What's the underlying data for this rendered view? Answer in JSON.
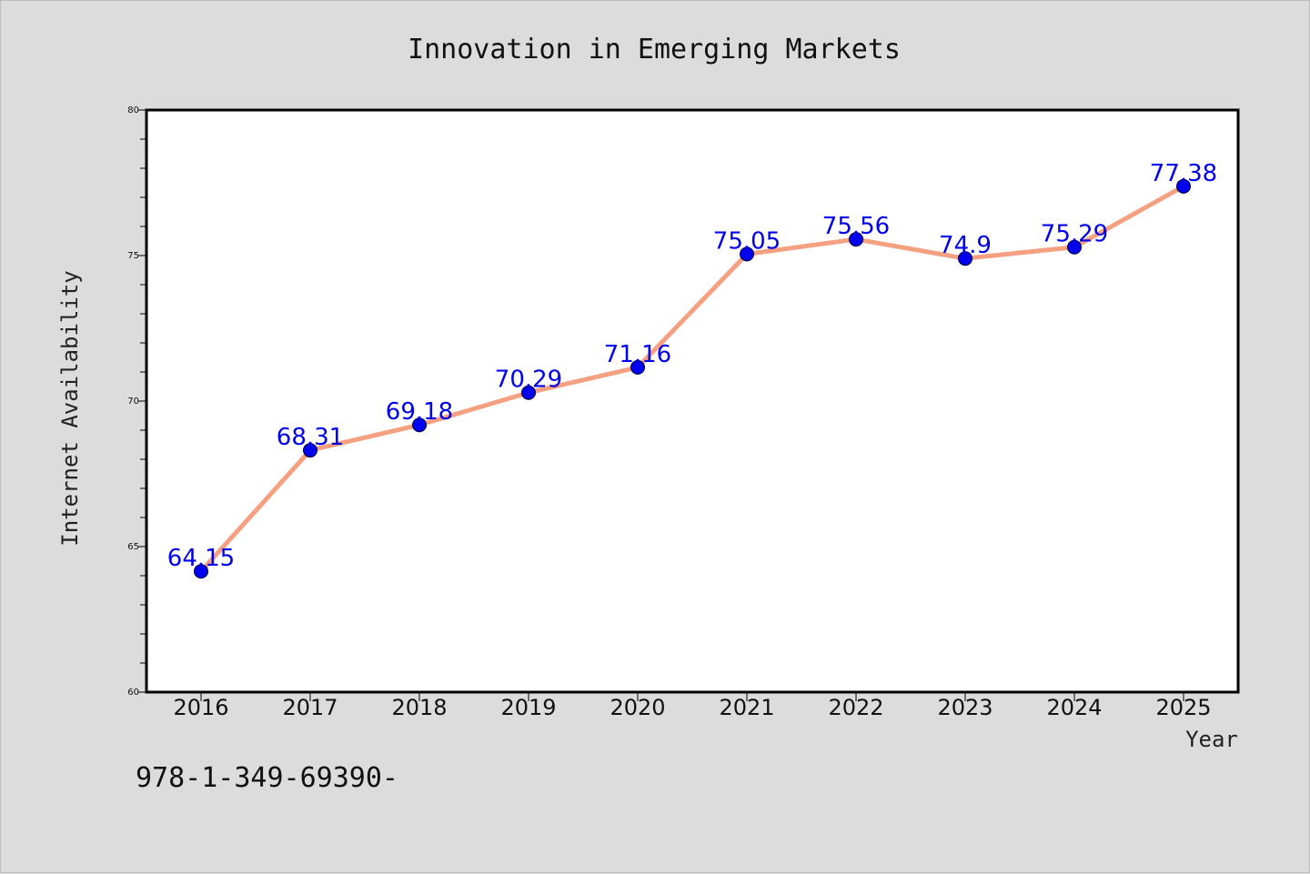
{
  "chart_data": {
    "type": "line",
    "title": "Innovation in Emerging Markets",
    "xlabel": "Year",
    "ylabel": "Internet Availability",
    "x": [
      "2016",
      "2017",
      "2018",
      "2019",
      "2020",
      "2021",
      "2022",
      "2023",
      "2024",
      "2025"
    ],
    "series": [
      {
        "values": [
          64.15,
          68.31,
          69.18,
          70.29,
          71.16,
          75.05,
          75.56,
          74.9,
          75.29,
          77.38
        ],
        "labels": [
          "64.15",
          "68.31",
          "69.18",
          "70.29",
          "71.16",
          "75.05",
          "75.56",
          "74.9",
          "75.29",
          "77.38"
        ]
      }
    ],
    "ylim": [
      60,
      80
    ],
    "yticks": [
      "60",
      "65",
      "70",
      "75",
      "80"
    ],
    "grid": false,
    "line_color": "#f4a081",
    "marker_color": "#0000ee",
    "label_color": "#0000ee"
  },
  "footer": {
    "text": "978-1-349-69390-"
  }
}
